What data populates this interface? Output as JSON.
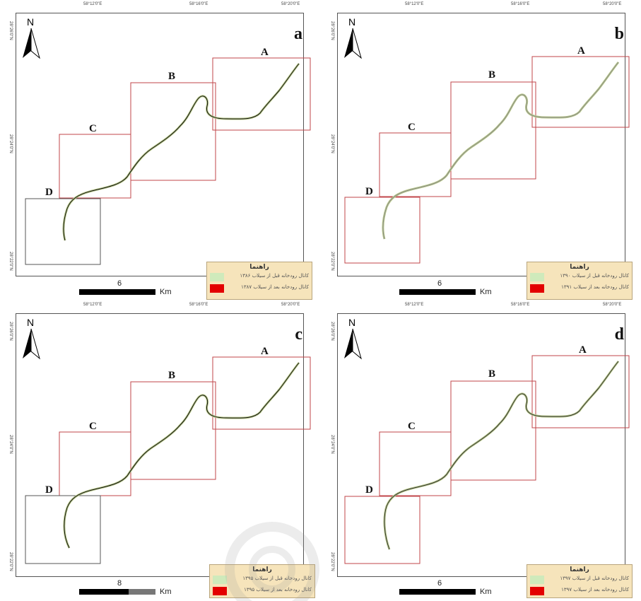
{
  "coordinates": {
    "top_ticks": [
      "58°12'0\"E",
      "58°16'0\"E",
      "58°20'0\"E"
    ],
    "left_ticks": [
      "28°26'0\"N",
      "28°24'0\"N",
      "28°22'0\"N"
    ]
  },
  "zones": [
    "A",
    "B",
    "C",
    "D"
  ],
  "north_label": "N",
  "panels": [
    {
      "id": "a",
      "letter": "a",
      "legend": {
        "title": "راهنما",
        "before_label": "کانال رودخانه قبل از سیلاب ۱۳۸۶",
        "after_label": "کانال رودخانه بعد از سیلاب ۱۳۸۷"
      },
      "scale": {
        "value": "6",
        "unit": "Km"
      }
    },
    {
      "id": "b",
      "letter": "b",
      "legend": {
        "title": "راهنما",
        "before_label": "کانال رودخانه قبل از سیلاب ۱۳۹۰",
        "after_label": "کانال رودخانه بعد از سیلاب ۱۳۹۱"
      },
      "scale": {
        "value": "6",
        "unit": "Km"
      }
    },
    {
      "id": "c",
      "letter": "c",
      "legend": {
        "title": "راهنما",
        "before_label": "کانال رودخانه قبل از سیلاب ۱۳۹۵",
        "after_label": "کانال رودخانه بعد از سیلاب ۱۳۹۵"
      },
      "scale": {
        "value": "8",
        "unit": "Km"
      }
    },
    {
      "id": "d",
      "letter": "d",
      "legend": {
        "title": "راهنما",
        "before_label": "کانال رودخانه قبل از سیلاب ۱۳۹۷",
        "after_label": "کانال رودخانه بعد از سیلاب ۱۳۹۷"
      },
      "scale": {
        "value": "6",
        "unit": "Km"
      }
    }
  ],
  "colors": {
    "box_border": "#c0454a",
    "river_before": "#b9c98a",
    "river_after": "#111111",
    "legend_bg": "#f6e4bb",
    "swatch_before": "#cfeabb",
    "swatch_after": "#e30000"
  }
}
